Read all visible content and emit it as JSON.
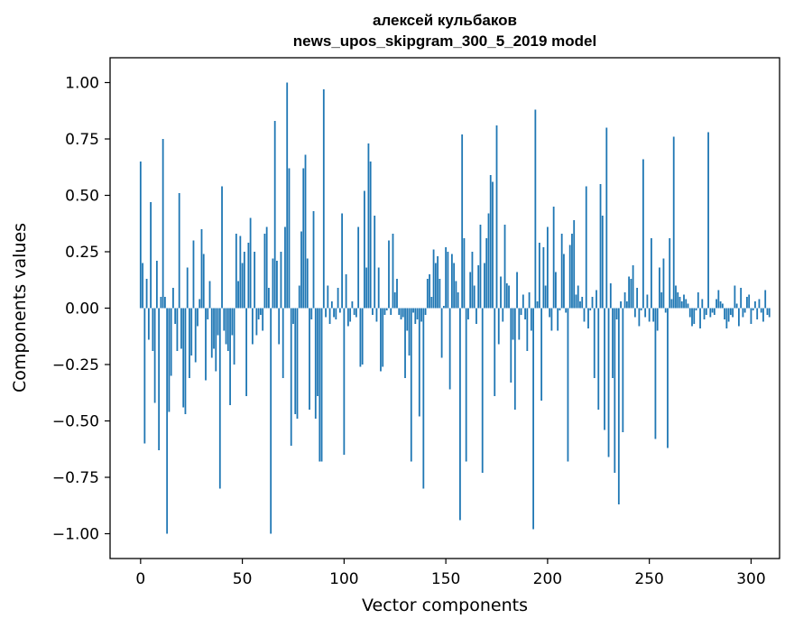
{
  "chart_data": {
    "type": "bar",
    "title_lines": [
      "алексей кульбаков",
      "news_upos_skipgram_300_5_2019 model"
    ],
    "xlabel": "Vector components",
    "ylabel": "Components values",
    "xlim": [
      -15,
      314
    ],
    "ylim": [
      -1.11,
      1.11
    ],
    "xticks": [
      0,
      50,
      100,
      150,
      200,
      250,
      300
    ],
    "xtick_labels": [
      "0",
      "50",
      "100",
      "150",
      "200",
      "250",
      "300"
    ],
    "yticks": [
      1.0,
      0.75,
      0.5,
      0.25,
      0.0,
      -0.25,
      -0.5,
      -0.75,
      -1.0
    ],
    "ytick_labels": [
      "1.00",
      "0.75",
      "0.50",
      "0.25",
      "0.00",
      "−0.25",
      "−0.50",
      "−0.75",
      "−1.00"
    ],
    "bar_color": "#1f77b4",
    "series": [
      {
        "name": "components",
        "values": [
          0.65,
          0.2,
          -0.6,
          0.13,
          -0.14,
          0.47,
          -0.19,
          -0.42,
          0.21,
          -0.63,
          0.05,
          0.75,
          0.05,
          -1.0,
          -0.46,
          -0.3,
          0.09,
          -0.07,
          -0.19,
          0.51,
          -0.18,
          -0.44,
          -0.47,
          0.18,
          -0.31,
          -0.21,
          0.3,
          -0.24,
          -0.08,
          0.04,
          0.35,
          0.24,
          -0.32,
          -0.05,
          0.12,
          -0.22,
          -0.18,
          -0.28,
          -0.12,
          -0.8,
          0.54,
          -0.1,
          -0.16,
          -0.19,
          -0.43,
          -0.12,
          -0.25,
          0.33,
          0.12,
          0.32,
          0.2,
          0.25,
          -0.39,
          0.29,
          0.4,
          -0.16,
          0.25,
          -0.12,
          -0.05,
          -0.03,
          -0.1,
          0.33,
          0.36,
          0.09,
          -1.0,
          0.22,
          0.83,
          0.21,
          -0.16,
          0.25,
          -0.31,
          0.36,
          1.0,
          0.62,
          -0.61,
          -0.07,
          -0.47,
          -0.49,
          0.1,
          0.34,
          0.62,
          0.68,
          0.22,
          -0.45,
          -0.05,
          0.43,
          -0.49,
          -0.39,
          -0.68,
          -0.68,
          0.97,
          -0.04,
          0.1,
          -0.07,
          0.03,
          -0.04,
          -0.05,
          0.09,
          -0.02,
          0.42,
          -0.65,
          0.15,
          -0.08,
          -0.06,
          0.03,
          -0.03,
          -0.04,
          0.36,
          -0.26,
          -0.25,
          0.52,
          0.18,
          0.73,
          0.65,
          -0.03,
          0.41,
          -0.06,
          0.18,
          -0.28,
          -0.26,
          -0.03,
          -0.01,
          0.3,
          -0.03,
          0.33,
          0.07,
          0.13,
          -0.03,
          -0.05,
          -0.04,
          -0.31,
          -0.1,
          -0.21,
          -0.68,
          -0.02,
          -0.07,
          -0.05,
          -0.48,
          -0.06,
          -0.8,
          -0.03,
          0.13,
          0.15,
          0.05,
          0.26,
          0.2,
          0.23,
          0.13,
          -0.22,
          0.01,
          0.27,
          0.25,
          -0.36,
          0.24,
          0.2,
          0.12,
          0.07,
          -0.94,
          0.77,
          0.31,
          -0.68,
          -0.05,
          0.16,
          0.25,
          0.1,
          -0.07,
          0.19,
          0.37,
          -0.73,
          0.2,
          0.31,
          0.42,
          0.59,
          0.56,
          -0.39,
          0.81,
          -0.16,
          0.14,
          -0.06,
          0.37,
          0.11,
          0.1,
          -0.33,
          -0.14,
          -0.45,
          0.16,
          -0.14,
          -0.03,
          0.06,
          -0.05,
          -0.19,
          0.07,
          -0.1,
          -0.98,
          0.88,
          0.03,
          0.29,
          -0.41,
          0.27,
          0.1,
          0.36,
          -0.04,
          -0.1,
          0.45,
          0.16,
          -0.1,
          -0.01,
          0.33,
          0.24,
          -0.02,
          -0.68,
          0.28,
          0.33,
          0.39,
          0.06,
          0.1,
          0.03,
          0.05,
          -0.06,
          0.54,
          -0.09,
          -0.01,
          0.05,
          -0.31,
          0.08,
          -0.45,
          0.55,
          0.41,
          -0.54,
          0.8,
          -0.66,
          0.11,
          -0.31,
          -0.73,
          -0.05,
          -0.87,
          0.03,
          -0.55,
          0.07,
          0.03,
          0.14,
          0.13,
          0.19,
          -0.04,
          0.09,
          -0.08,
          -0.01,
          0.66,
          -0.04,
          0.06,
          -0.06,
          0.31,
          -0.06,
          -0.58,
          -0.1,
          0.18,
          0.07,
          0.22,
          -0.02,
          -0.62,
          0.31,
          0.04,
          0.76,
          0.1,
          0.07,
          0.05,
          0.03,
          0.06,
          0.04,
          0.02,
          -0.04,
          -0.08,
          -0.07,
          -0.01,
          0.07,
          -0.09,
          0.04,
          -0.05,
          -0.03,
          0.78,
          -0.04,
          -0.02,
          -0.03,
          0.04,
          0.08,
          0.03,
          0.02,
          -0.05,
          -0.09,
          -0.06,
          -0.03,
          -0.04,
          0.1,
          0.02,
          -0.08,
          0.09,
          -0.04,
          -0.02,
          0.05,
          0.06,
          -0.07,
          -0.01,
          0.03,
          -0.05,
          0.04,
          -0.02,
          -0.06,
          0.08,
          -0.03,
          -0.04
        ]
      }
    ]
  }
}
